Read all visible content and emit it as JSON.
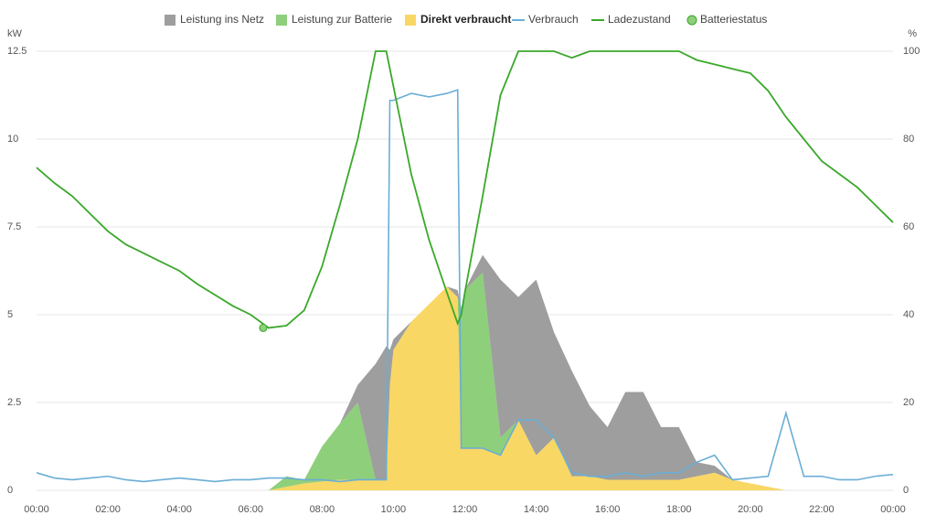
{
  "chart_data": {
    "type": "area",
    "y_label": "kW",
    "y2_label": "%",
    "x": [
      0,
      0.5,
      1,
      1.5,
      2,
      2.5,
      3,
      3.5,
      4,
      4.5,
      5,
      5.5,
      6,
      6.5,
      7,
      7.5,
      8,
      8.5,
      9,
      9.5,
      9.8,
      9.9,
      10,
      10.5,
      11,
      11.5,
      11.8,
      11.9,
      12,
      12.5,
      13,
      13.5,
      14,
      14.5,
      15,
      15.5,
      16,
      16.5,
      17,
      17.5,
      18,
      18.5,
      19,
      19.5,
      20,
      20.5,
      21,
      21.5,
      22,
      22.5,
      23,
      23.5,
      24
    ],
    "xlim": [
      0,
      24
    ],
    "xticks": [
      {
        "value": 0,
        "label": "00:00"
      },
      {
        "value": 2,
        "label": "02:00"
      },
      {
        "value": 4,
        "label": "04:00"
      },
      {
        "value": 6,
        "label": "06:00"
      },
      {
        "value": 8,
        "label": "08:00"
      },
      {
        "value": 10,
        "label": "10:00"
      },
      {
        "value": 12,
        "label": "12:00"
      },
      {
        "value": 14,
        "label": "14:00"
      },
      {
        "value": 16,
        "label": "16:00"
      },
      {
        "value": 18,
        "label": "18:00"
      },
      {
        "value": 20,
        "label": "20:00"
      },
      {
        "value": 22,
        "label": "22:00"
      },
      {
        "value": 24,
        "label": "00:00"
      }
    ],
    "ylim": [
      0,
      12.5
    ],
    "yticks": [
      0,
      2.5,
      5,
      7.5,
      10,
      12.5
    ],
    "y2lim": [
      0,
      100
    ],
    "y2ticks": [
      0,
      20,
      40,
      60,
      80,
      100
    ],
    "grid": true,
    "series": [
      {
        "name": "Leistung ins Netz",
        "type": "area",
        "color": "#9e9e9e",
        "values": [
          0,
          0,
          0,
          0,
          0,
          0,
          0,
          0,
          0,
          0,
          0,
          0,
          0,
          0,
          0,
          0,
          0,
          0,
          0.5,
          3.3,
          3.8,
          1.0,
          0.3,
          0,
          0,
          0,
          0.2,
          0,
          0,
          0.5,
          4.5,
          3.5,
          5.0,
          3.0,
          3.0,
          2.0,
          1.5,
          2.5,
          2.5,
          1.5,
          1.5,
          0.4,
          0.2,
          0,
          0,
          0,
          0,
          0,
          0,
          0,
          0,
          0,
          0
        ]
      },
      {
        "name": "Leistung zur Batterie",
        "type": "area",
        "color": "#8ecf7b",
        "values": [
          0,
          0,
          0,
          0,
          0,
          0,
          0,
          0,
          0,
          0,
          0,
          0,
          0,
          0,
          0.3,
          0.1,
          1.0,
          1.6,
          2.2,
          0,
          0,
          0,
          0,
          0,
          0,
          0,
          0,
          4.0,
          4.5,
          5.0,
          0.5,
          0,
          0,
          0,
          0,
          0,
          0,
          0,
          0,
          0,
          0,
          0,
          0,
          0,
          0,
          0,
          0,
          0,
          0,
          0,
          0,
          0,
          0
        ]
      },
      {
        "name": "Direkt verbraucht",
        "type": "area",
        "color": "#f8d764",
        "values": [
          0,
          0,
          0,
          0,
          0,
          0,
          0,
          0,
          0,
          0,
          0,
          0,
          0,
          0,
          0.1,
          0.2,
          0.25,
          0.3,
          0.3,
          0.3,
          0.3,
          3.0,
          4.0,
          4.8,
          5.3,
          5.8,
          5.5,
          1.2,
          1.2,
          1.2,
          1.0,
          2.0,
          1.0,
          1.5,
          0.4,
          0.4,
          0.3,
          0.3,
          0.3,
          0.3,
          0.3,
          0.4,
          0.5,
          0.3,
          0.2,
          0.1,
          0,
          0,
          0,
          0,
          0,
          0,
          0
        ]
      },
      {
        "name": "Verbrauch",
        "type": "line",
        "color": "#6aaed6",
        "values": [
          0.5,
          0.35,
          0.3,
          0.35,
          0.4,
          0.3,
          0.25,
          0.3,
          0.35,
          0.3,
          0.25,
          0.3,
          0.3,
          0.35,
          0.35,
          0.3,
          0.3,
          0.25,
          0.3,
          0.3,
          0.3,
          11.1,
          11.1,
          11.3,
          11.2,
          11.3,
          11.4,
          1.2,
          1.2,
          1.2,
          1.0,
          2.0,
          2.0,
          1.5,
          0.5,
          0.4,
          0.4,
          0.5,
          0.4,
          0.5,
          0.5,
          0.8,
          1.0,
          0.3,
          0.35,
          0.4,
          2.2,
          0.4,
          0.4,
          0.3,
          0.3,
          0.4,
          0.45
        ]
      },
      {
        "name": "Ladezustand",
        "type": "line",
        "axis": "y2",
        "color": "#3aa82a",
        "values": [
          73.5,
          70,
          67,
          63,
          59,
          56,
          54,
          52,
          50,
          47,
          44.5,
          42,
          40,
          37,
          37.5,
          41,
          51,
          65,
          80,
          100,
          100,
          96,
          92,
          72,
          57,
          45,
          38,
          40,
          45,
          67,
          90,
          100,
          100,
          100,
          98.5,
          100,
          100,
          100,
          100,
          100,
          100,
          98,
          97,
          96,
          95,
          91,
          85,
          80,
          75,
          72,
          69,
          65,
          61
        ]
      },
      {
        "name": "Batteriestatus",
        "type": "point",
        "axis": "y2",
        "color": "#8ecf7b",
        "x": [
          6.35
        ],
        "values": [
          37
        ]
      }
    ]
  }
}
